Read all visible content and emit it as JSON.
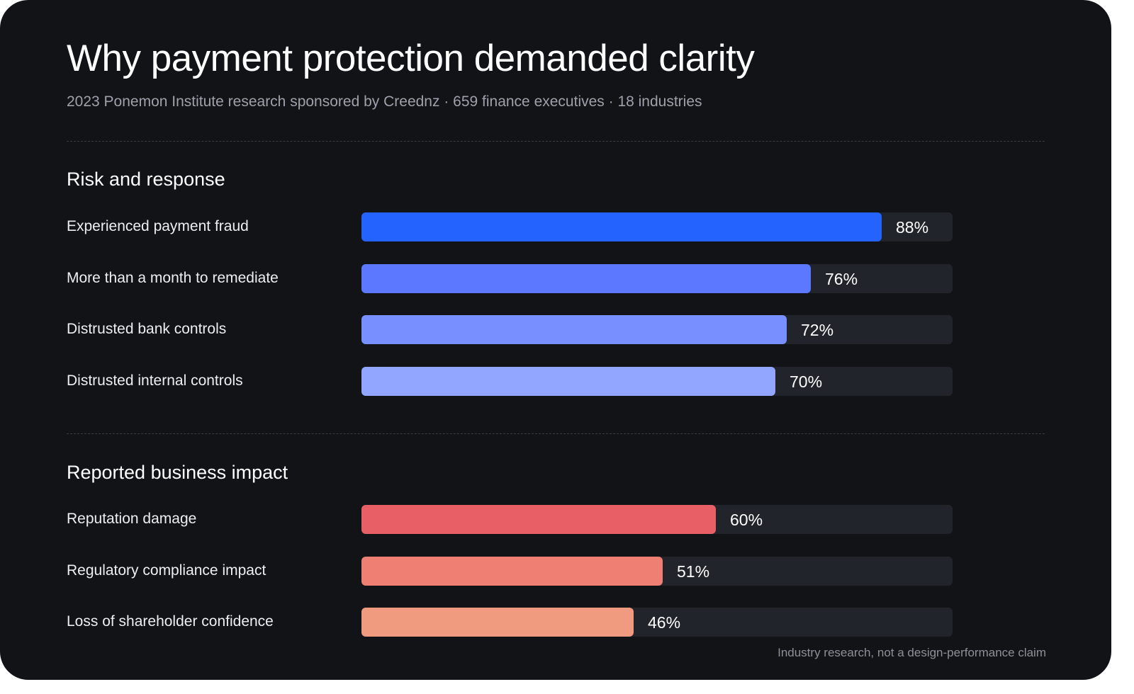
{
  "header": {
    "title": "Why payment protection demanded clarity",
    "subtitle": "2023 Ponemon Institute research sponsored by Creednz · 659 finance executives · 18 industries"
  },
  "footnote": "Industry research, not a design-performance claim",
  "chart_data": [
    {
      "type": "bar",
      "orientation": "horizontal",
      "title": "Risk and response",
      "unit": "%",
      "xlim": [
        0,
        100
      ],
      "categories": [
        "Experienced payment fraud",
        "More than a month to remediate",
        "Distrusted bank controls",
        "Distrusted internal controls"
      ],
      "values": [
        88,
        76,
        72,
        70
      ],
      "labels": [
        "88%",
        "76%",
        "72%",
        "70%"
      ],
      "colors": [
        "#2563ff",
        "#5b78ff",
        "#7890ff",
        "#93a6ff"
      ]
    },
    {
      "type": "bar",
      "orientation": "horizontal",
      "title": "Reported business impact",
      "unit": "%",
      "xlim": [
        0,
        100
      ],
      "categories": [
        "Reputation damage",
        "Regulatory compliance impact",
        "Loss of shareholder confidence"
      ],
      "values": [
        60,
        51,
        46
      ],
      "labels": [
        "60%",
        "51%",
        "46%"
      ],
      "colors": [
        "#e85f66",
        "#ef7f73",
        "#f09a80"
      ]
    }
  ]
}
